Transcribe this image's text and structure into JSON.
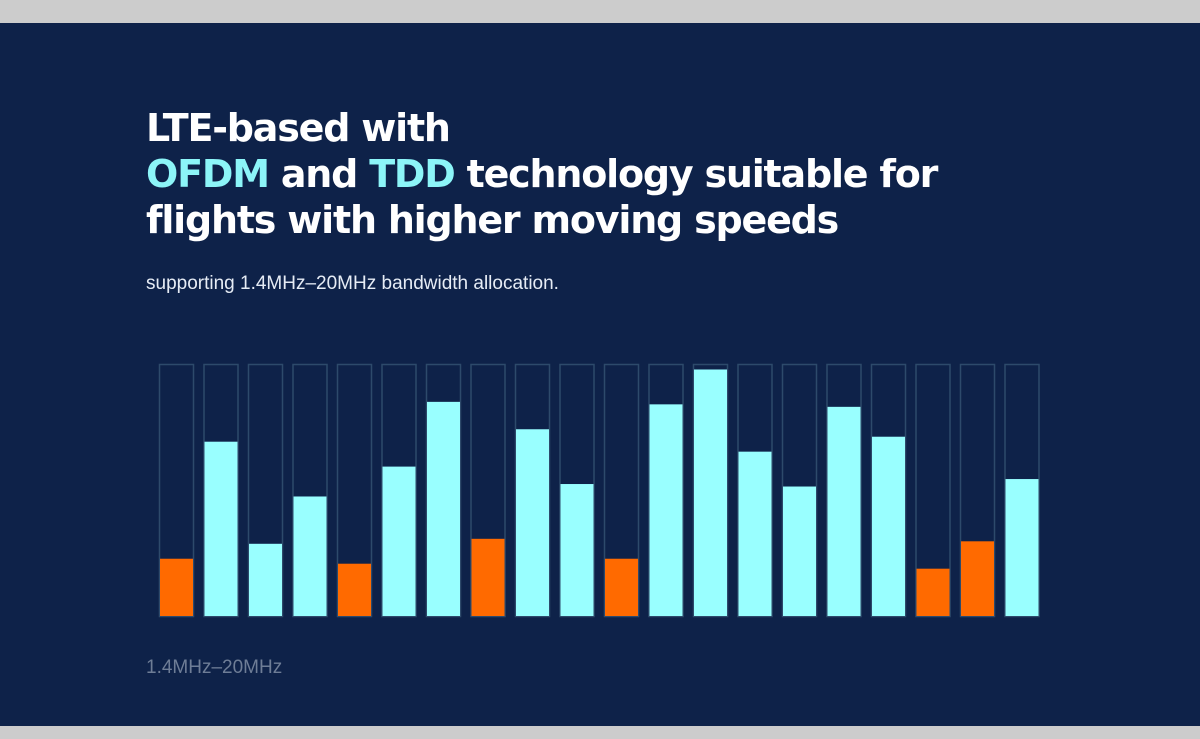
{
  "headline": {
    "line1": "LTE-based with",
    "ofdm": "OFDM",
    "and": " and ",
    "tdd": "TDD",
    "rest2": " technology suitable for",
    "line3": "flights with higher moving speeds"
  },
  "subtitle": "supporting 1.4MHz–20MHz bandwidth allocation.",
  "axis_caption": "1.4MHz–20MHz",
  "colors": {
    "background": "#0e2249",
    "accent": "#8cf5f8",
    "bar_cyan": "#99ffff",
    "bar_orange": "#ff6a00",
    "slot_outline": "#2d4a6b"
  },
  "chart_data": {
    "type": "bar",
    "title": "",
    "xlabel": "1.4MHz–20MHz",
    "ylabel": "",
    "ylim": [
      0,
      100
    ],
    "values": [
      23,
      70,
      29,
      48,
      21,
      60,
      86,
      31,
      75,
      53,
      23,
      85,
      99,
      66,
      52,
      84,
      72,
      19,
      30,
      55
    ],
    "highlight": [
      true,
      false,
      false,
      false,
      true,
      false,
      false,
      true,
      false,
      false,
      true,
      false,
      false,
      false,
      false,
      false,
      false,
      true,
      true,
      false
    ]
  }
}
